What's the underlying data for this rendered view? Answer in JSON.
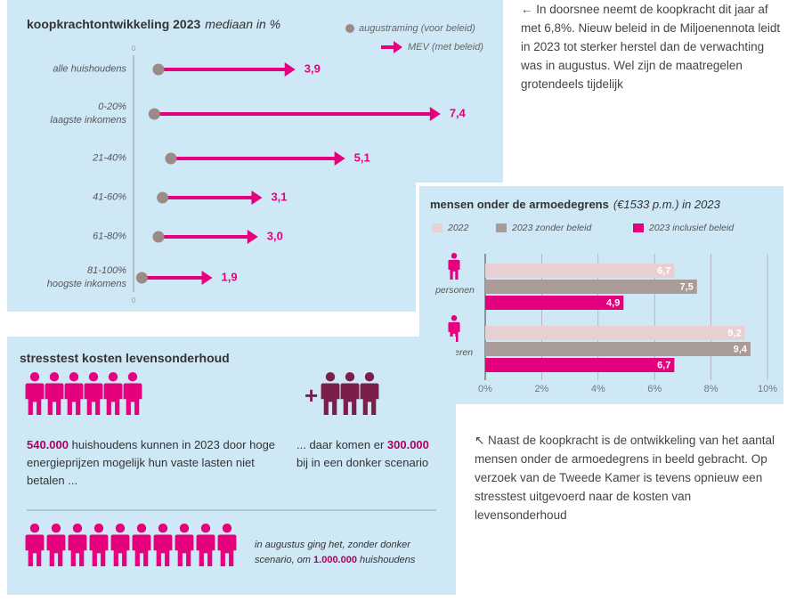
{
  "chart_data": [
    {
      "type": "arrow",
      "title": "koopkrachtontwikkeling 2023",
      "subtitle": "mediaan in %",
      "categories": [
        "alle huishoudens",
        "0-20%\nlaagste inkomens",
        "21-40%",
        "41-60%",
        "61-80%",
        "81-100%\nhoogste inkomens"
      ],
      "series": [
        {
          "name": "augustraming (voor beleid)",
          "color": "#9a8b87",
          "values": [
            0.6,
            0.5,
            0.9,
            0.7,
            0.6,
            0.2
          ]
        },
        {
          "name": "MEV (met beleid)",
          "color": "#e5007e",
          "values": [
            3.9,
            7.4,
            5.1,
            3.1,
            3.0,
            1.9
          ],
          "value_labels": [
            "3,9",
            "7,4",
            "5,1",
            "3,1",
            "3,0",
            "1,9"
          ]
        }
      ],
      "xlim": [
        0,
        8.5
      ],
      "xticks": [
        0
      ]
    },
    {
      "type": "hbar",
      "title": "mensen onder de armoedegrens",
      "subtitle": "(€1533 p.m.) in 2023",
      "categories": [
        "personen",
        "kinderen"
      ],
      "series": [
        {
          "name": "2022",
          "color": "#e8cfd2",
          "values": [
            6.7,
            9.2
          ],
          "value_labels": [
            "6,7",
            "9,2"
          ]
        },
        {
          "name": "2023 zonder beleid",
          "color": "#a99b97",
          "values": [
            7.5,
            9.4
          ],
          "value_labels": [
            "7,5",
            "9,4"
          ]
        },
        {
          "name": "2023 inclusief beleid",
          "color": "#e5007e",
          "values": [
            4.9,
            6.7
          ],
          "value_labels": [
            "4,9",
            "6,7"
          ]
        }
      ],
      "xlim": [
        0,
        10
      ],
      "xticks": [
        {
          "value": 0,
          "label": "0%"
        },
        {
          "value": 2,
          "label": "2%"
        },
        {
          "value": 4,
          "label": "4%"
        },
        {
          "value": 6,
          "label": "6%"
        },
        {
          "value": 8,
          "label": "8%"
        },
        {
          "value": 10,
          "label": "10%"
        }
      ],
      "grid": true
    }
  ],
  "notes": [
    "← In doorsnee neemt de koopkracht dit jaar af met 6,8%. Nieuw beleid in de Miljoenennota leidt in 2023 tot sterker herstel dan de verwachting was in augustus. Wel zijn de maatregelen grotendeels tijdelijk",
    "↖ Naast de koopkracht is de ontwikkeling van het aantal mensen onder de armoedegrens in beeld gebracht. Op verzoek van de Tweede Kamer is tevens opnieuw een stresstest uitgevoerd naar de kosten van levensonderhoud"
  ],
  "stresstest": {
    "title": "stresstest kosten levensonderhoud",
    "plus": "+",
    "left": {
      "bold": "540.000",
      "text": " huishoudens kunnen in 2023 door hoge energieprijzen mogelijk hun vaste lasten niet betalen ..."
    },
    "right": {
      "before": "... daar komen er ",
      "bold": "300.000",
      "text": " bij in een donker scenario"
    },
    "august": {
      "before": "in augustus ging het, zonder donker scenario, om ",
      "bold": "1.000.000",
      "text": " huishoudens"
    }
  }
}
